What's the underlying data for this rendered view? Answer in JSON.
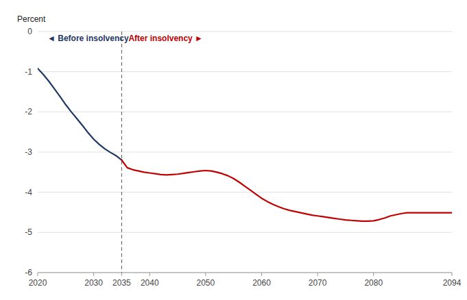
{
  "chart_data": {
    "type": "line",
    "y_label": "Percent",
    "xlim": [
      2020,
      2094
    ],
    "ylim": [
      -6,
      0
    ],
    "xticks": [
      2020,
      2030,
      2035,
      2040,
      2050,
      2060,
      2070,
      2080,
      2094
    ],
    "yticks": [
      0,
      -1,
      -2,
      -3,
      -4,
      -5,
      -6
    ],
    "grid": true,
    "vertical_line": 2035,
    "series": [
      {
        "color": "#1f3864",
        "x": [
          2020,
          2021,
          2022,
          2023,
          2024,
          2025,
          2026,
          2027,
          2028,
          2029,
          2030,
          2031,
          2032,
          2033,
          2034,
          2035
        ],
        "values": [
          -0.92,
          -1.07,
          -1.24,
          -1.43,
          -1.62,
          -1.82,
          -2.0,
          -2.17,
          -2.34,
          -2.52,
          -2.68,
          -2.81,
          -2.92,
          -3.01,
          -3.09,
          -3.2
        ]
      },
      {
        "color": "#c00000",
        "x": [
          2035,
          2036,
          2037,
          2038,
          2039,
          2040,
          2041,
          2042,
          2043,
          2044,
          2045,
          2046,
          2047,
          2048,
          2049,
          2050,
          2051,
          2052,
          2053,
          2054,
          2055,
          2056,
          2057,
          2058,
          2059,
          2060,
          2061,
          2062,
          2063,
          2064,
          2065,
          2066,
          2067,
          2068,
          2069,
          2070,
          2071,
          2072,
          2073,
          2074,
          2075,
          2076,
          2077,
          2078,
          2079,
          2080,
          2081,
          2082,
          2083,
          2084,
          2085,
          2086,
          2087,
          2088,
          2089,
          2090,
          2091,
          2092,
          2093,
          2094
        ],
        "values": [
          -3.2,
          -3.39,
          -3.44,
          -3.47,
          -3.5,
          -3.52,
          -3.54,
          -3.56,
          -3.57,
          -3.56,
          -3.55,
          -3.53,
          -3.51,
          -3.49,
          -3.47,
          -3.46,
          -3.47,
          -3.5,
          -3.54,
          -3.59,
          -3.66,
          -3.75,
          -3.85,
          -3.95,
          -4.05,
          -4.15,
          -4.23,
          -4.3,
          -4.36,
          -4.41,
          -4.45,
          -4.48,
          -4.51,
          -4.54,
          -4.57,
          -4.59,
          -4.61,
          -4.63,
          -4.65,
          -4.67,
          -4.69,
          -4.7,
          -4.71,
          -4.72,
          -4.72,
          -4.71,
          -4.68,
          -4.64,
          -4.59,
          -4.56,
          -4.53,
          -4.51,
          -4.51,
          -4.51,
          -4.51,
          -4.51,
          -4.51,
          -4.51,
          -4.51,
          -4.51
        ]
      }
    ],
    "annotations": [
      {
        "text": "◄ Before insolvency",
        "color": "#1f3864"
      },
      {
        "text": "After insolvency ►",
        "color": "#c00000"
      }
    ]
  }
}
